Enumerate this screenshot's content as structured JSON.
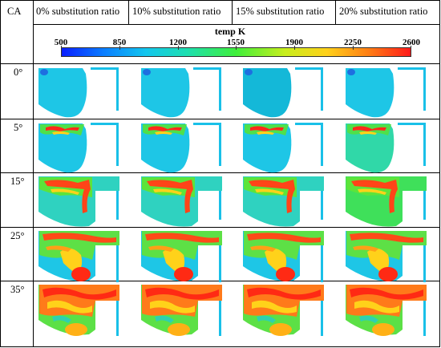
{
  "table": {
    "corner_label": "CA",
    "columns": [
      "0% substitution ratio",
      "10% substitution ratio",
      "15% substitution ratio",
      "20% substitution ratio"
    ],
    "rows": [
      "0°",
      "5°",
      "15°",
      "25°",
      "35°"
    ]
  },
  "colorbar": {
    "title": "temp K",
    "ticks": [
      "500",
      "850",
      "1200",
      "1550",
      "1900",
      "2250",
      "2600"
    ],
    "colormap": [
      "#0a1eff",
      "#0a7dff",
      "#13c6ee",
      "#1ddfb0",
      "#3fef3a",
      "#c8ee1c",
      "#ffd11a",
      "#ff7e14",
      "#ff1a1a"
    ]
  }
}
